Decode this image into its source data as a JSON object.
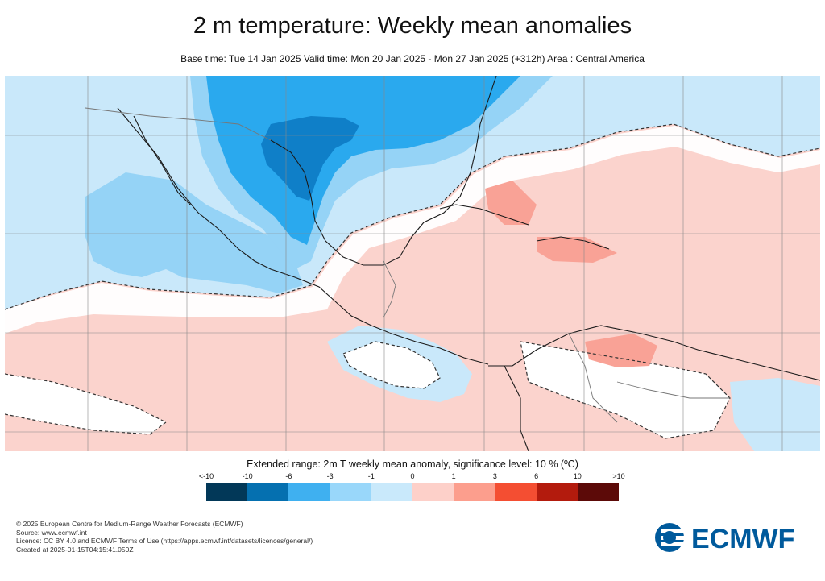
{
  "header": {
    "title": "2 m temperature: Weekly mean anomalies",
    "subtitle": "Base time: Tue 14 Jan 2025 Valid time: Mon 20 Jan 2025 - Mon 27 Jan 2025 (+312h) Area : Central America"
  },
  "map": {
    "area": "Central America",
    "colors": {
      "strong_cold": "#0f7fc8",
      "cold": "#2aa9ee",
      "mild_cold": "#95d3f6",
      "slight_cold": "#c9e8fa",
      "neutral": "#ffffff",
      "slight_warm": "#fbd3cd",
      "warm": "#f9a296",
      "coast": "#1a1a1a",
      "grid": "#888888"
    }
  },
  "legend": {
    "title": "Extended range: 2m T weekly mean anomaly, significance level: 10 % (ºC)",
    "ticks": [
      "<-10",
      "-10",
      "-6",
      "-3",
      "-1",
      "0",
      "1",
      "3",
      "6",
      "10",
      ">10"
    ],
    "colors": [
      "#023858",
      "#0570b0",
      "#3fb0f0",
      "#99d7fa",
      "#c9e9fb",
      "#fdd0c9",
      "#fc9e8d",
      "#f44e32",
      "#b31b0d",
      "#5c0a08"
    ]
  },
  "footer": {
    "lines": [
      "© 2025 European Centre for Medium-Range Weather Forecasts (ECMWF)",
      "Source: www.ecmwf.int",
      "Licence: CC BY 4.0 and ECMWF Terms of Use (https://apps.ecmwf.int/datasets/licences/general/)",
      "Created at 2025-01-15T04:15:41.050Z"
    ],
    "logo_text": "ECMWF",
    "logo_color": "#005a9c"
  }
}
